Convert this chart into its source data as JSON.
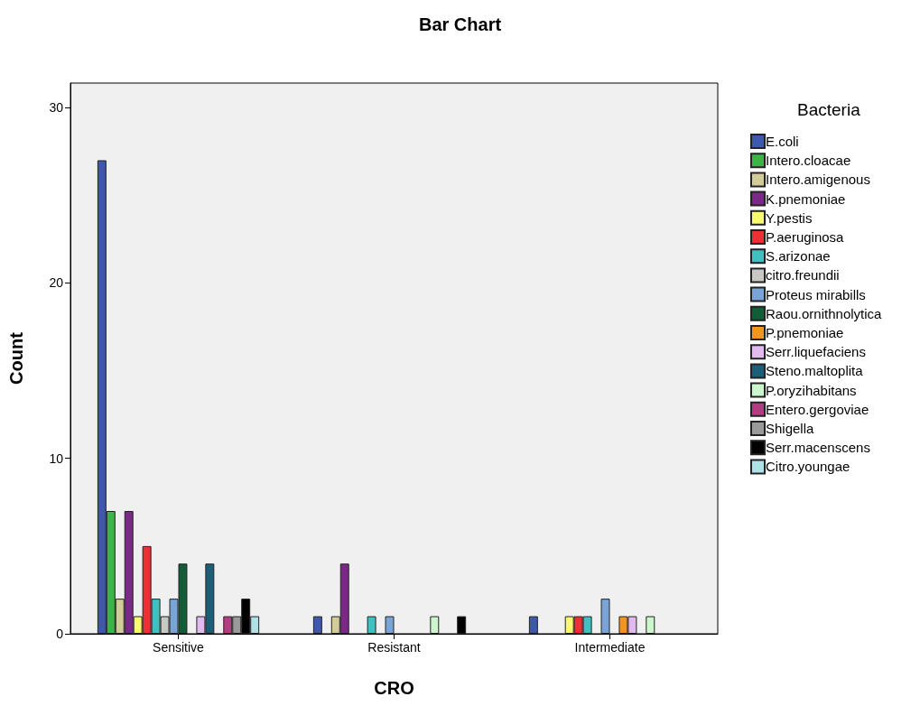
{
  "chart_data": {
    "type": "bar",
    "title": "Bar Chart",
    "xlabel": "CRO",
    "ylabel": "Count",
    "legend_title": "Bacteria",
    "legend": "right",
    "grid": false,
    "categories": [
      "Sensitive",
      "Resistant",
      "Intermediate"
    ],
    "ylim": [
      0,
      31.4
    ],
    "yticks": [
      0,
      10,
      20,
      30
    ],
    "series": [
      {
        "name": "E.coli",
        "color": "#3e58ac",
        "values": [
          27,
          1,
          1
        ]
      },
      {
        "name": "Intero.cloacae",
        "color": "#3cb448",
        "values": [
          7,
          null,
          null
        ]
      },
      {
        "name": "Intero.amigenous",
        "color": "#d2cc98",
        "values": [
          2,
          1,
          null
        ]
      },
      {
        "name": "K.pnemoniae",
        "color": "#7a2a86",
        "values": [
          7,
          4,
          null
        ]
      },
      {
        "name": "Y.pestis",
        "color": "#fafa70",
        "values": [
          1,
          null,
          1
        ]
      },
      {
        "name": "P.aeruginosa",
        "color": "#ee2f36",
        "values": [
          5,
          null,
          1
        ]
      },
      {
        "name": "S.arizonae",
        "color": "#40c0c0",
        "values": [
          2,
          1,
          1
        ]
      },
      {
        "name": "citro.freundii",
        "color": "#c8c8c4",
        "values": [
          1,
          null,
          null
        ]
      },
      {
        "name": "Proteus mirabills",
        "color": "#7aa4d6",
        "values": [
          2,
          1,
          2
        ]
      },
      {
        "name": "Raou.ornithnolytica",
        "color": "#125c38",
        "values": [
          4,
          null,
          null
        ]
      },
      {
        "name": "P.pnemoniae",
        "color": "#f0961e",
        "values": [
          null,
          null,
          1
        ]
      },
      {
        "name": "Serr.liquefaciens",
        "color": "#e2baf0",
        "values": [
          1,
          null,
          1
        ]
      },
      {
        "name": "Steno.maltoplita",
        "color": "#1c5e78",
        "values": [
          4,
          null,
          null
        ]
      },
      {
        "name": "P.oryzihabitans",
        "color": "#ccf6cc",
        "values": [
          null,
          1,
          1
        ]
      },
      {
        "name": "Entero.gergoviae",
        "color": "#b43c82",
        "values": [
          1,
          null,
          null
        ]
      },
      {
        "name": "Shigella",
        "color": "#9a9a9a",
        "values": [
          1,
          null,
          null
        ]
      },
      {
        "name": "Serr.macenscens",
        "color": "#000000",
        "values": [
          2,
          1,
          null
        ]
      },
      {
        "name": "Citro.youngae",
        "color": "#aee2e6",
        "values": [
          1,
          null,
          null
        ]
      }
    ]
  }
}
